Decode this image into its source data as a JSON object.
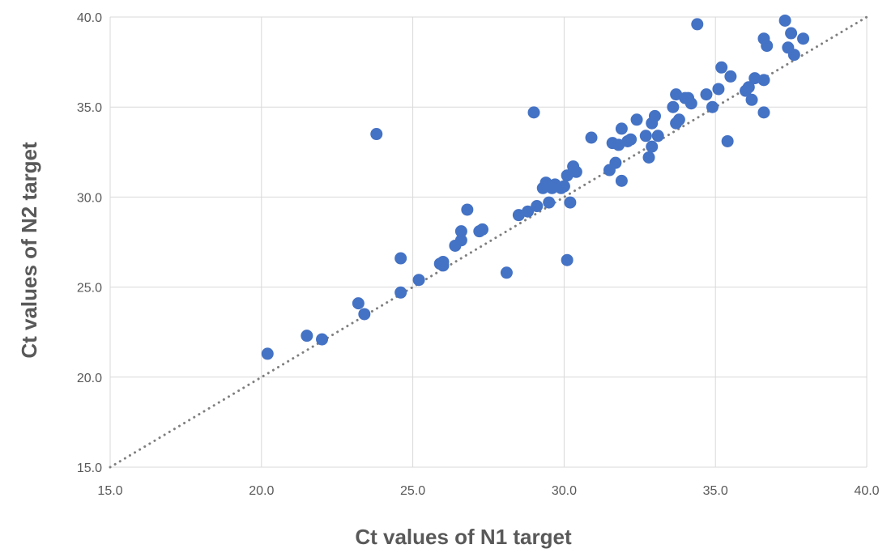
{
  "chart_data": {
    "type": "scatter",
    "title": "",
    "xlabel": "Ct values of N1 target",
    "ylabel": "Ct values of N2 target",
    "xlim": [
      15.0,
      40.0
    ],
    "ylim": [
      15.0,
      40.0
    ],
    "x_ticks": [
      "15.0",
      "20.0",
      "25.0",
      "30.0",
      "35.0",
      "40.0"
    ],
    "y_ticks": [
      "15.0",
      "20.0",
      "25.0",
      "30.0",
      "35.0",
      "40.0"
    ],
    "grid": true,
    "legend": "none",
    "marker_color": "#4472c4",
    "reference_line": {
      "style": "dotted",
      "color": "#7f7f7f",
      "from": [
        15.0,
        15.0
      ],
      "to": [
        40.0,
        40.0
      ]
    },
    "points": [
      [
        20.2,
        21.3
      ],
      [
        21.5,
        22.3
      ],
      [
        22.0,
        22.1
      ],
      [
        23.2,
        24.1
      ],
      [
        23.4,
        23.5
      ],
      [
        23.8,
        33.5
      ],
      [
        24.6,
        26.6
      ],
      [
        24.6,
        24.7
      ],
      [
        25.2,
        25.4
      ],
      [
        26.0,
        26.2
      ],
      [
        25.9,
        26.3
      ],
      [
        26.0,
        26.4
      ],
      [
        26.4,
        27.3
      ],
      [
        26.6,
        27.6
      ],
      [
        26.6,
        28.1
      ],
      [
        26.8,
        29.3
      ],
      [
        27.2,
        28.1
      ],
      [
        27.3,
        28.2
      ],
      [
        28.1,
        25.8
      ],
      [
        28.5,
        29.0
      ],
      [
        28.8,
        29.2
      ],
      [
        29.1,
        29.5
      ],
      [
        29.0,
        34.7
      ],
      [
        29.3,
        30.5
      ],
      [
        29.4,
        30.8
      ],
      [
        29.5,
        29.7
      ],
      [
        29.6,
        30.5
      ],
      [
        29.7,
        30.7
      ],
      [
        29.9,
        30.5
      ],
      [
        30.0,
        30.6
      ],
      [
        30.1,
        31.2
      ],
      [
        30.1,
        26.5
      ],
      [
        30.2,
        29.7
      ],
      [
        30.3,
        31.7
      ],
      [
        30.4,
        31.4
      ],
      [
        30.9,
        33.3
      ],
      [
        31.5,
        31.5
      ],
      [
        31.6,
        33.0
      ],
      [
        31.7,
        31.9
      ],
      [
        31.8,
        32.9
      ],
      [
        31.9,
        30.9
      ],
      [
        31.9,
        33.8
      ],
      [
        32.1,
        33.1
      ],
      [
        32.2,
        33.2
      ],
      [
        32.4,
        34.3
      ],
      [
        32.7,
        33.4
      ],
      [
        32.8,
        32.2
      ],
      [
        32.9,
        32.8
      ],
      [
        32.9,
        34.1
      ],
      [
        33.0,
        34.5
      ],
      [
        33.1,
        33.4
      ],
      [
        33.6,
        35.0
      ],
      [
        33.7,
        34.1
      ],
      [
        33.7,
        35.7
      ],
      [
        33.8,
        34.3
      ],
      [
        34.0,
        35.5
      ],
      [
        34.1,
        35.5
      ],
      [
        34.2,
        35.2
      ],
      [
        34.4,
        39.6
      ],
      [
        34.7,
        35.7
      ],
      [
        34.9,
        35.0
      ],
      [
        35.1,
        36.0
      ],
      [
        35.2,
        37.2
      ],
      [
        35.4,
        33.1
      ],
      [
        35.5,
        36.7
      ],
      [
        36.0,
        35.9
      ],
      [
        36.1,
        36.1
      ],
      [
        36.2,
        35.4
      ],
      [
        36.3,
        36.6
      ],
      [
        36.6,
        36.5
      ],
      [
        36.6,
        34.7
      ],
      [
        36.6,
        38.8
      ],
      [
        36.7,
        38.4
      ],
      [
        37.3,
        39.8
      ],
      [
        37.4,
        38.3
      ],
      [
        37.5,
        39.1
      ],
      [
        37.6,
        37.9
      ],
      [
        37.9,
        38.8
      ]
    ]
  }
}
